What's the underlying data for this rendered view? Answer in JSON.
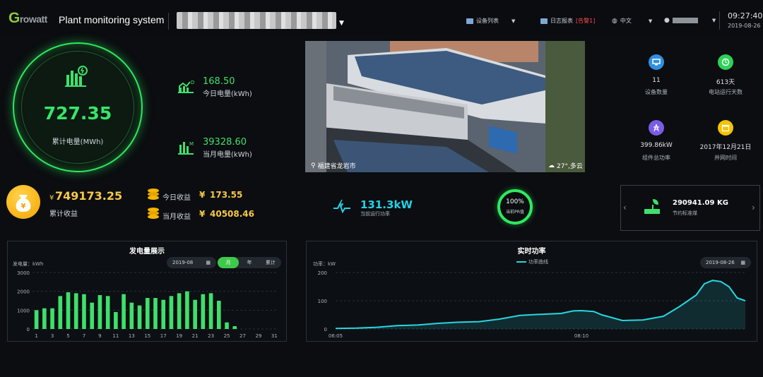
{
  "header": {
    "logo_text_g": "G",
    "logo_text_rest": "rowatt",
    "app_title": "Plant monitoring system",
    "device_list": "设备列表",
    "log_report": "日志报表",
    "alarm": "[告警1]",
    "language": "中文",
    "time": "09:27:40",
    "date": "2019-08-26"
  },
  "total": {
    "value": "727.35",
    "label": "累计电量(MWh)"
  },
  "today_energy": {
    "value": "168.50",
    "label": "今日电量(kWh)"
  },
  "month_energy": {
    "value": "39328.60",
    "label": "当月电量(kWh)"
  },
  "revenue": {
    "currency": "¥",
    "total_value": "749173.25",
    "total_label": "累计收益",
    "today_label": "今日收益",
    "today_value": "173.55",
    "month_label": "当月收益",
    "month_value": "40508.46"
  },
  "photo": {
    "location": "福建省龙岩市",
    "weather": "27°,多云"
  },
  "right_stats": [
    {
      "value": "11",
      "label": "设备数量",
      "color": "#2f8fe0",
      "icon": "monitor-icon"
    },
    {
      "value": "613天",
      "label": "电站运行天数",
      "color": "#2ed158",
      "icon": "clock-icon"
    },
    {
      "value": "399.86kW",
      "label": "组件总功率",
      "color": "#7a5ce6",
      "icon": "tower-icon"
    },
    {
      "value": "2017年12月21日",
      "label": "并网时间",
      "color": "#f5c400",
      "icon": "calendar-icon"
    }
  ],
  "current_power": {
    "value": "131.3kW",
    "label": "当前运行功率"
  },
  "pr": {
    "value": "100%",
    "label": "当前PR值"
  },
  "coal": {
    "value": "290941.09 KG",
    "label": "节约标准煤"
  },
  "energy_panel": {
    "title": "发电量展示",
    "unit": "发电量：kWh",
    "date": "2019-08",
    "seg_month": "月",
    "seg_year": "年",
    "seg_total": "累计"
  },
  "power_panel": {
    "title": "实时功率",
    "unit": "功率：kW",
    "legend": "功率曲线",
    "date": "2019-08-26"
  },
  "chart_data": [
    {
      "type": "bar",
      "title": "发电量展示",
      "ylabel": "发电量：kWh",
      "ylim": [
        0,
        3000
      ],
      "yticks": [
        "0",
        "1000",
        "2000",
        "3000"
      ],
      "categories": [
        1,
        2,
        3,
        4,
        5,
        6,
        7,
        8,
        9,
        10,
        11,
        12,
        13,
        14,
        15,
        16,
        17,
        18,
        19,
        20,
        21,
        22,
        23,
        24,
        25,
        26,
        27,
        28,
        29,
        30,
        31
      ],
      "xticks": [
        "1",
        "3",
        "5",
        "7",
        "9",
        "11",
        "13",
        "15",
        "17",
        "19",
        "21",
        "23",
        "25",
        "27",
        "29",
        "31"
      ],
      "values": [
        1000,
        1100,
        1100,
        1750,
        1950,
        1900,
        1850,
        1400,
        1800,
        1750,
        900,
        1850,
        1400,
        1250,
        1650,
        1650,
        1550,
        1750,
        1900,
        2000,
        1550,
        1850,
        1900,
        1500,
        350,
        150,
        0,
        0,
        0,
        0,
        0
      ],
      "color": "#3ee06b"
    },
    {
      "type": "area",
      "title": "实时功率",
      "ylabel": "功率：kW",
      "ylim": [
        0,
        200
      ],
      "yticks": [
        "0",
        "100",
        "200"
      ],
      "xticks": [
        "06:05",
        "08:10"
      ],
      "xlim": [
        0,
        1
      ],
      "series": [
        {
          "name": "功率曲线",
          "x": [
            0,
            0.05,
            0.1,
            0.15,
            0.2,
            0.25,
            0.3,
            0.35,
            0.4,
            0.45,
            0.5,
            0.55,
            0.58,
            0.6,
            0.63,
            0.65,
            0.7,
            0.75,
            0.8,
            0.84,
            0.88,
            0.9,
            0.92,
            0.94,
            0.96,
            0.98,
            1.0
          ],
          "values": [
            2,
            3,
            6,
            12,
            14,
            20,
            24,
            26,
            35,
            48,
            52,
            55,
            64,
            65,
            62,
            50,
            30,
            32,
            45,
            80,
            120,
            160,
            172,
            168,
            150,
            110,
            100
          ],
          "color": "#28d6e0"
        }
      ]
    }
  ]
}
